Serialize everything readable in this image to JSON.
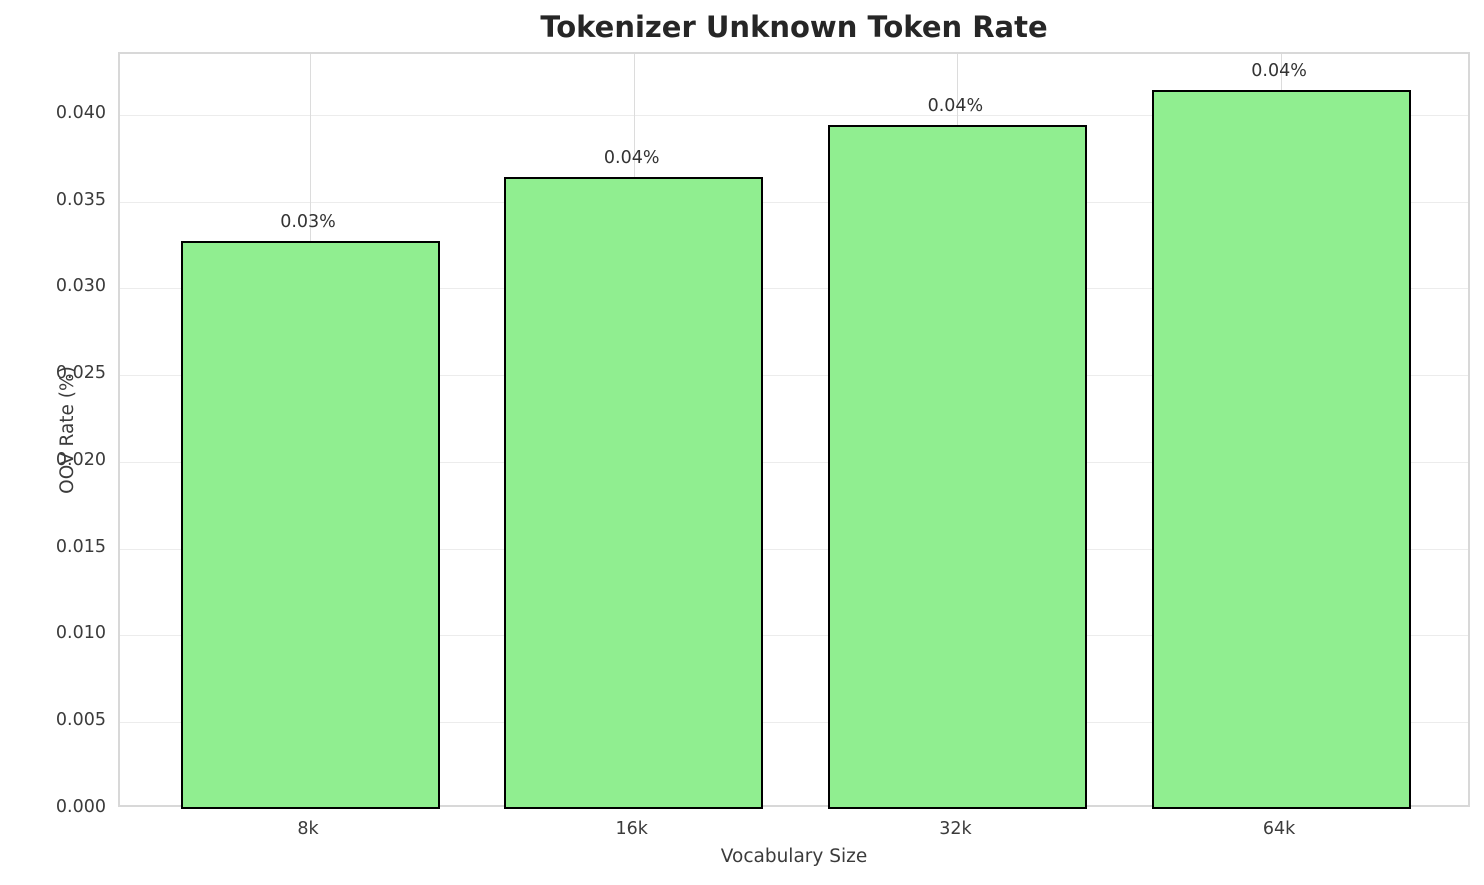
{
  "chart_data": {
    "type": "bar",
    "title": "Tokenizer Unknown Token Rate",
    "xlabel": "Vocabulary Size",
    "ylabel": "OOV Rate (%)",
    "categories": [
      "8k",
      "16k",
      "32k",
      "64k"
    ],
    "values": [
      0.0327,
      0.0364,
      0.0394,
      0.0414
    ],
    "bar_labels": [
      "0.03%",
      "0.04%",
      "0.04%",
      "0.04%"
    ],
    "ytick_labels": [
      "0.000",
      "0.005",
      "0.010",
      "0.015",
      "0.020",
      "0.025",
      "0.030",
      "0.035",
      "0.040"
    ],
    "yticks": [
      0.0,
      0.005,
      0.01,
      0.015,
      0.02,
      0.025,
      0.03,
      0.035,
      0.04
    ],
    "ylim": [
      0,
      0.0435
    ],
    "grid": true,
    "legend_position": "none",
    "bar_fill_color": "#90EE90",
    "bar_edge_color": "#000000",
    "grid_color": "#e5e5e5",
    "spine_color": "#d8d8d8",
    "title_color": "#262626",
    "text_color": "#3b3b3b"
  }
}
